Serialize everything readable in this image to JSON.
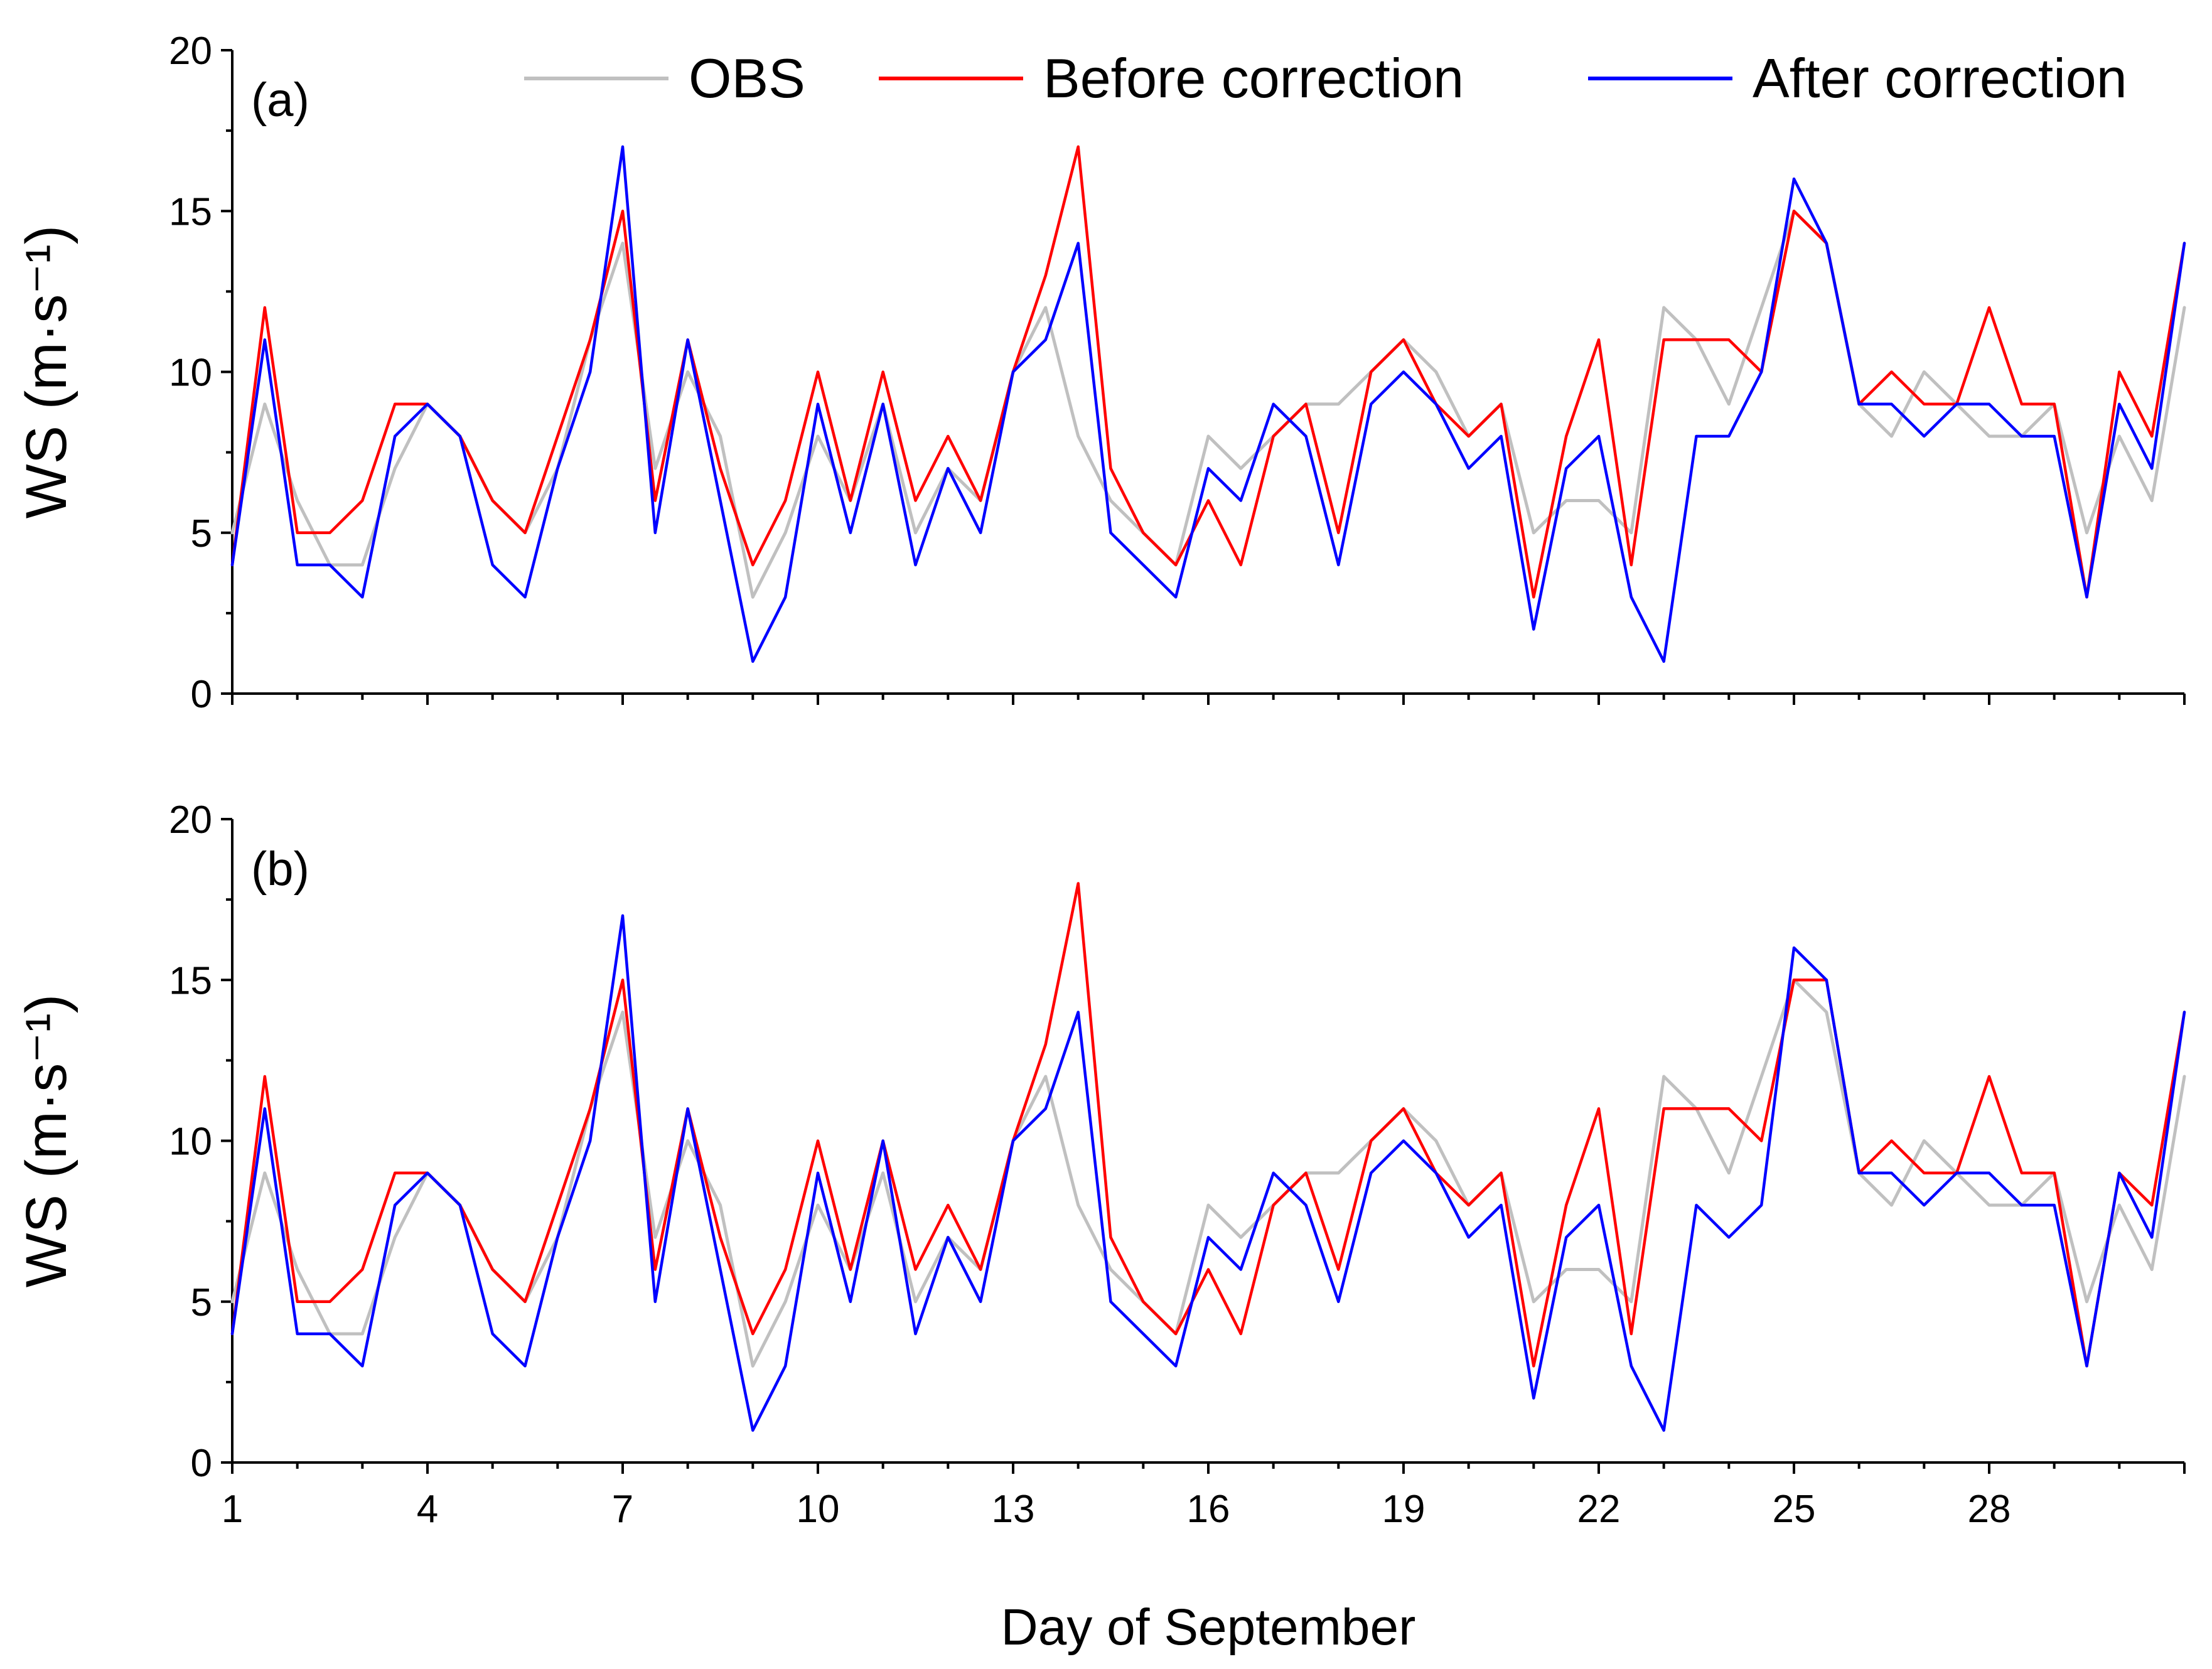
{
  "chart_data": [
    {
      "type": "line",
      "panel_label": "(a)",
      "ylabel": "WS (m·s⁻¹)",
      "ylim": [
        0,
        20
      ],
      "yticks": [
        "0",
        "5",
        "10",
        "15",
        "20"
      ],
      "xlim": [
        1,
        31
      ],
      "series": [
        {
          "name": "OBS",
          "color": "#c0c0c0",
          "x": [
            1,
            1.5,
            2,
            2.5,
            3,
            3.5,
            4,
            4.5,
            5,
            5.5,
            6,
            6.5,
            7,
            7.5,
            8,
            8.5,
            9,
            9.5,
            10,
            10.5,
            11,
            11.5,
            12,
            12.5,
            13,
            13.5,
            14,
            14.5,
            15,
            15.5,
            16,
            16.5,
            17,
            17.5,
            18,
            18.5,
            19,
            19.5,
            20,
            20.5,
            21,
            21.5,
            22,
            22.5,
            23,
            23.5,
            24,
            24.5,
            25,
            25.5,
            26,
            26.5,
            27,
            27.5,
            28,
            28.5,
            29,
            29.5,
            30,
            30.5,
            31
          ],
          "values": [
            5,
            9,
            6,
            4,
            4,
            7,
            9,
            8,
            6,
            5,
            7,
            11,
            14,
            7,
            10,
            8,
            3,
            5,
            8,
            6,
            9,
            5,
            7,
            6,
            10,
            12,
            8,
            6,
            5,
            4,
            8,
            7,
            8,
            9,
            9,
            10,
            11,
            10,
            8,
            9,
            5,
            6,
            6,
            5,
            12,
            11,
            9,
            12,
            15,
            14,
            9,
            8,
            10,
            9,
            8,
            8,
            9,
            5,
            8,
            6,
            12
          ]
        },
        {
          "name": "Before correction",
          "color": "#ff0000",
          "x": [
            1,
            1.5,
            2,
            2.5,
            3,
            3.5,
            4,
            4.5,
            5,
            5.5,
            6,
            6.5,
            7,
            7.5,
            8,
            8.5,
            9,
            9.5,
            10,
            10.5,
            11,
            11.5,
            12,
            12.5,
            13,
            13.5,
            14,
            14.5,
            15,
            15.5,
            16,
            16.5,
            17,
            17.5,
            18,
            18.5,
            19,
            19.5,
            20,
            20.5,
            21,
            21.5,
            22,
            22.5,
            23,
            23.5,
            24,
            24.5,
            25,
            25.5,
            26,
            26.5,
            27,
            27.5,
            28,
            28.5,
            29,
            29.5,
            30,
            30.5,
            31
          ],
          "values": [
            4,
            12,
            5,
            5,
            6,
            9,
            9,
            8,
            6,
            5,
            8,
            11,
            15,
            6,
            11,
            7,
            4,
            6,
            10,
            6,
            10,
            6,
            8,
            6,
            10,
            13,
            17,
            7,
            5,
            4,
            6,
            4,
            8,
            9,
            5,
            10,
            11,
            9,
            8,
            9,
            3,
            8,
            11,
            4,
            11,
            11,
            11,
            10,
            15,
            14,
            9,
            10,
            9,
            9,
            12,
            9,
            9,
            3,
            10,
            8,
            14
          ]
        },
        {
          "name": "After correction",
          "color": "#0000ff",
          "x": [
            1,
            1.5,
            2,
            2.5,
            3,
            3.5,
            4,
            4.5,
            5,
            5.5,
            6,
            6.5,
            7,
            7.5,
            8,
            8.5,
            9,
            9.5,
            10,
            10.5,
            11,
            11.5,
            12,
            12.5,
            13,
            13.5,
            14,
            14.5,
            15,
            15.5,
            16,
            16.5,
            17,
            17.5,
            18,
            18.5,
            19,
            19.5,
            20,
            20.5,
            21,
            21.5,
            22,
            22.5,
            23,
            23.5,
            24,
            24.5,
            25,
            25.5,
            26,
            26.5,
            27,
            27.5,
            28,
            28.5,
            29,
            29.5,
            30,
            30.5,
            31
          ],
          "values": [
            4,
            11,
            4,
            4,
            3,
            8,
            9,
            8,
            4,
            3,
            7,
            10,
            17,
            5,
            11,
            6,
            1,
            3,
            9,
            5,
            9,
            4,
            7,
            5,
            10,
            11,
            14,
            5,
            4,
            3,
            7,
            6,
            9,
            8,
            4,
            9,
            10,
            9,
            7,
            8,
            2,
            7,
            8,
            3,
            1,
            8,
            8,
            10,
            16,
            14,
            9,
            9,
            8,
            9,
            9,
            8,
            8,
            3,
            9,
            7,
            14
          ]
        }
      ]
    },
    {
      "type": "line",
      "panel_label": "(b)",
      "ylabel": "WS (m·s⁻¹)",
      "ylim": [
        0,
        20
      ],
      "yticks": [
        "0",
        "5",
        "10",
        "15",
        "20"
      ],
      "xlim": [
        1,
        31
      ],
      "xticks": [
        "1",
        "4",
        "7",
        "10",
        "13",
        "16",
        "19",
        "22",
        "25",
        "28"
      ],
      "xlabel": "Day of September",
      "series": [
        {
          "name": "OBS",
          "color": "#c0c0c0",
          "x": [
            1,
            1.5,
            2,
            2.5,
            3,
            3.5,
            4,
            4.5,
            5,
            5.5,
            6,
            6.5,
            7,
            7.5,
            8,
            8.5,
            9,
            9.5,
            10,
            10.5,
            11,
            11.5,
            12,
            12.5,
            13,
            13.5,
            14,
            14.5,
            15,
            15.5,
            16,
            16.5,
            17,
            17.5,
            18,
            18.5,
            19,
            19.5,
            20,
            20.5,
            21,
            21.5,
            22,
            22.5,
            23,
            23.5,
            24,
            24.5,
            25,
            25.5,
            26,
            26.5,
            27,
            27.5,
            28,
            28.5,
            29,
            29.5,
            30,
            30.5,
            31
          ],
          "values": [
            5,
            9,
            6,
            4,
            4,
            7,
            9,
            8,
            6,
            5,
            7,
            11,
            14,
            7,
            10,
            8,
            3,
            5,
            8,
            6,
            9,
            5,
            7,
            6,
            10,
            12,
            8,
            6,
            5,
            4,
            8,
            7,
            8,
            9,
            9,
            10,
            11,
            10,
            8,
            9,
            5,
            6,
            6,
            5,
            12,
            11,
            9,
            12,
            15,
            14,
            9,
            8,
            10,
            9,
            8,
            8,
            9,
            5,
            8,
            6,
            12
          ]
        },
        {
          "name": "Before correction",
          "color": "#ff0000",
          "x": [
            1,
            1.5,
            2,
            2.5,
            3,
            3.5,
            4,
            4.5,
            5,
            5.5,
            6,
            6.5,
            7,
            7.5,
            8,
            8.5,
            9,
            9.5,
            10,
            10.5,
            11,
            11.5,
            12,
            12.5,
            13,
            13.5,
            14,
            14.5,
            15,
            15.5,
            16,
            16.5,
            17,
            17.5,
            18,
            18.5,
            19,
            19.5,
            20,
            20.5,
            21,
            21.5,
            22,
            22.5,
            23,
            23.5,
            24,
            24.5,
            25,
            25.5,
            26,
            26.5,
            27,
            27.5,
            28,
            28.5,
            29,
            29.5,
            30,
            30.5,
            31
          ],
          "values": [
            4,
            12,
            5,
            5,
            6,
            9,
            9,
            8,
            6,
            5,
            8,
            11,
            15,
            6,
            11,
            7,
            4,
            6,
            10,
            6,
            10,
            6,
            8,
            6,
            10,
            13,
            18,
            7,
            5,
            4,
            6,
            4,
            8,
            9,
            6,
            10,
            11,
            9,
            8,
            9,
            3,
            8,
            11,
            4,
            11,
            11,
            11,
            10,
            15,
            15,
            9,
            10,
            9,
            9,
            12,
            9,
            9,
            3,
            9,
            8,
            14
          ]
        },
        {
          "name": "After correction",
          "color": "#0000ff",
          "x": [
            1,
            1.5,
            2,
            2.5,
            3,
            3.5,
            4,
            4.5,
            5,
            5.5,
            6,
            6.5,
            7,
            7.5,
            8,
            8.5,
            9,
            9.5,
            10,
            10.5,
            11,
            11.5,
            12,
            12.5,
            13,
            13.5,
            14,
            14.5,
            15,
            15.5,
            16,
            16.5,
            17,
            17.5,
            18,
            18.5,
            19,
            19.5,
            20,
            20.5,
            21,
            21.5,
            22,
            22.5,
            23,
            23.5,
            24,
            24.5,
            25,
            25.5,
            26,
            26.5,
            27,
            27.5,
            28,
            28.5,
            29,
            29.5,
            30,
            30.5,
            31
          ],
          "values": [
            4,
            11,
            4,
            4,
            3,
            8,
            9,
            8,
            4,
            3,
            7,
            10,
            17,
            5,
            11,
            6,
            1,
            3,
            9,
            5,
            10,
            4,
            7,
            5,
            10,
            11,
            14,
            5,
            4,
            3,
            7,
            6,
            9,
            8,
            5,
            9,
            10,
            9,
            7,
            8,
            2,
            7,
            8,
            3,
            1,
            8,
            7,
            8,
            16,
            15,
            9,
            9,
            8,
            9,
            9,
            8,
            8,
            3,
            9,
            7,
            14
          ]
        }
      ]
    }
  ],
  "legend": [
    {
      "label": "OBS",
      "color": "#c0c0c0"
    },
    {
      "label": "Before correction",
      "color": "#ff0000"
    },
    {
      "label": "After correction",
      "color": "#0000ff"
    }
  ]
}
